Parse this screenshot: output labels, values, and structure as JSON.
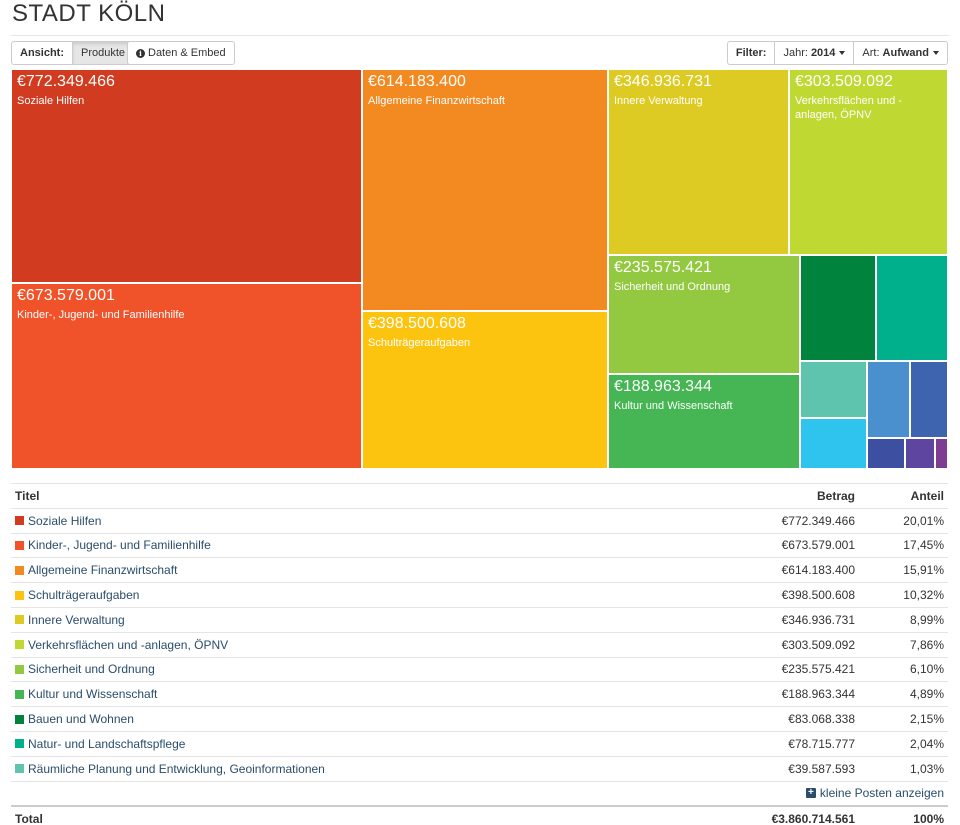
{
  "page": {
    "title": "STADT KÖLN"
  },
  "toolbar": {
    "view_label": "Ansicht:",
    "view_products": "Produkte",
    "data_embed": "Daten & Embed",
    "filter_label": "Filter:",
    "year_label": "Jahr:",
    "year_value": "2014",
    "type_label": "Art:",
    "type_value": "Aufwand"
  },
  "treemap": {
    "tiles": [
      {
        "amount": "€772.349.466",
        "label": "Soziale Hilfen",
        "color": "#d13b1f"
      },
      {
        "amount": "€673.579.001",
        "label": "Kinder-, Jugend- und Familienhilfe",
        "color": "#f0532a"
      },
      {
        "amount": "€614.183.400",
        "label": "Allgemeine Finanzwirtschaft",
        "color": "#f28a21"
      },
      {
        "amount": "€398.500.608",
        "label": "Schulträgeraufgaben",
        "color": "#fdc40f"
      },
      {
        "amount": "€346.936.731",
        "label": "Innere Verwaltung",
        "color": "#ddcb23"
      },
      {
        "amount": "€303.509.092",
        "label": "Verkehrsflächen und -anlagen, ÖPNV",
        "color": "#bfd832"
      },
      {
        "amount": "€235.575.421",
        "label": "Sicherheit und Ordnung",
        "color": "#93c941"
      },
      {
        "amount": "€188.963.344",
        "label": "Kultur und Wissenschaft",
        "color": "#45b653"
      },
      {
        "color": "#00843d"
      },
      {
        "color": "#00b08d"
      },
      {
        "color": "#5fc4ae"
      },
      {
        "color": "#4a90cf"
      },
      {
        "color": "#3e64b0"
      },
      {
        "color": "#2fc4ee"
      },
      {
        "color": "#3d4fa0"
      },
      {
        "color": "#5e45a0"
      },
      {
        "color": "#7e3c93"
      }
    ]
  },
  "table": {
    "headers": {
      "title": "Titel",
      "betrag": "Betrag",
      "anteil": "Anteil"
    },
    "rows": [
      {
        "title": "Soziale Hilfen",
        "betrag": "€772.349.466",
        "anteil": "20,01%",
        "color": "#d13b1f"
      },
      {
        "title": "Kinder-, Jugend- und Familienhilfe",
        "betrag": "€673.579.001",
        "anteil": "17,45%",
        "color": "#f0532a"
      },
      {
        "title": "Allgemeine Finanzwirtschaft",
        "betrag": "€614.183.400",
        "anteil": "15,91%",
        "color": "#f28a21"
      },
      {
        "title": "Schulträgeraufgaben",
        "betrag": "€398.500.608",
        "anteil": "10,32%",
        "color": "#fdc40f"
      },
      {
        "title": "Innere Verwaltung",
        "betrag": "€346.936.731",
        "anteil": "8,99%",
        "color": "#ddcb23"
      },
      {
        "title": "Verkehrsflächen und -anlagen, ÖPNV",
        "betrag": "€303.509.092",
        "anteil": "7,86%",
        "color": "#bfd832"
      },
      {
        "title": "Sicherheit und Ordnung",
        "betrag": "€235.575.421",
        "anteil": "6,10%",
        "color": "#93c941"
      },
      {
        "title": "Kultur und Wissenschaft",
        "betrag": "€188.963.344",
        "anteil": "4,89%",
        "color": "#45b653"
      },
      {
        "title": "Bauen und Wohnen",
        "betrag": "€83.068.338",
        "anteil": "2,15%",
        "color": "#00843d"
      },
      {
        "title": "Natur- und Landschaftspflege",
        "betrag": "€78.715.777",
        "anteil": "2,04%",
        "color": "#00b08d"
      },
      {
        "title": "Räumliche Planung und Entwicklung, Geoinformationen",
        "betrag": "€39.587.593",
        "anteil": "1,03%",
        "color": "#5fc4ae"
      }
    ],
    "more_label": "kleine Posten anzeigen",
    "total": {
      "title": "Total",
      "betrag": "€3.860.714.561",
      "anteil": "100%"
    }
  }
}
